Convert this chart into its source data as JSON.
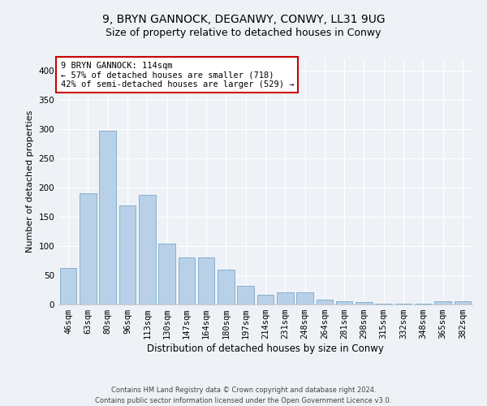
{
  "title1": "9, BRYN GANNOCK, DEGANWY, CONWY, LL31 9UG",
  "title2": "Size of property relative to detached houses in Conwy",
  "xlabel": "Distribution of detached houses by size in Conwy",
  "ylabel": "Number of detached properties",
  "categories": [
    "46sqm",
    "63sqm",
    "80sqm",
    "96sqm",
    "113sqm",
    "130sqm",
    "147sqm",
    "164sqm",
    "180sqm",
    "197sqm",
    "214sqm",
    "231sqm",
    "248sqm",
    "264sqm",
    "281sqm",
    "298sqm",
    "315sqm",
    "332sqm",
    "348sqm",
    "365sqm",
    "382sqm"
  ],
  "values": [
    62,
    190,
    297,
    170,
    187,
    104,
    80,
    80,
    60,
    32,
    17,
    21,
    21,
    9,
    5,
    4,
    2,
    1,
    1,
    6,
    6
  ],
  "bar_color": "#b8d0e8",
  "bar_edge_color": "#7aaaca",
  "annotation_box_text": "9 BRYN GANNOCK: 114sqm\n← 57% of detached houses are smaller (718)\n42% of semi-detached houses are larger (529) →",
  "annotation_box_color": "#cc0000",
  "footer1": "Contains HM Land Registry data © Crown copyright and database right 2024.",
  "footer2": "Contains public sector information licensed under the Open Government Licence v3.0.",
  "ylim": [
    0,
    420
  ],
  "yticks": [
    0,
    50,
    100,
    150,
    200,
    250,
    300,
    350,
    400
  ],
  "background_color": "#eef2f7",
  "grid_color": "#ffffff",
  "title1_fontsize": 10,
  "title2_fontsize": 9,
  "xlabel_fontsize": 8.5,
  "ylabel_fontsize": 8,
  "tick_fontsize": 7.5,
  "annot_fontsize": 7.5,
  "footer_fontsize": 6
}
